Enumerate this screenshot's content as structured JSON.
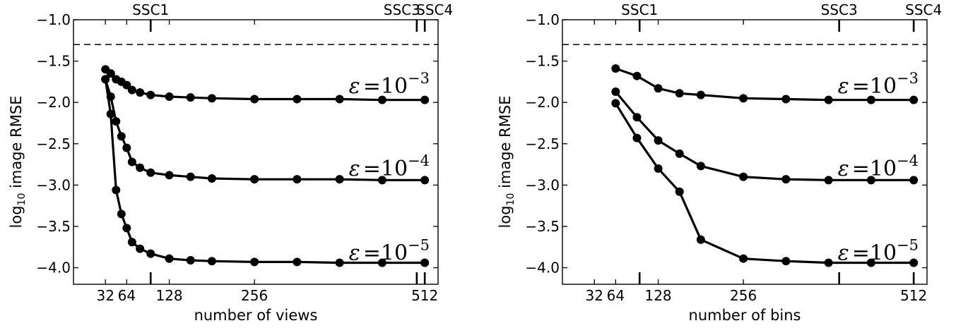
{
  "chart_data": [
    {
      "type": "line",
      "xlabel": "number of views",
      "ylabel_main": "log",
      "ylabel_sub": "10",
      "ylabel_rest": " image RMSE",
      "xlim": [
        -16,
        532
      ],
      "ylim": [
        -4.2,
        -1.0
      ],
      "x_ticks": [
        32,
        64,
        128,
        256,
        512
      ],
      "x_tick_labels": [
        "32",
        "64",
        "128",
        "256",
        "512"
      ],
      "y_ticks": [
        -1.0,
        -1.5,
        -2.0,
        -2.5,
        -3.0,
        -3.5,
        -4.0
      ],
      "y_tick_labels": [
        "−1.0",
        "−1.5",
        "−2.0",
        "−2.5",
        "−3.0",
        "−3.5",
        "−4.0"
      ],
      "reference_line": -1.3,
      "markers": [
        {
          "label": "SSC1",
          "x": 100
        },
        {
          "label": "SSC3",
          "x": 500
        },
        {
          "label": "SSC4",
          "x": 512
        }
      ],
      "series": [
        {
          "name": "ε = 10⁻³",
          "eps_exp": "−3",
          "label_y": -1.8,
          "x": [
            32,
            40,
            48,
            56,
            64,
            72,
            84,
            100,
            128,
            160,
            192,
            256,
            320,
            384,
            448,
            512
          ],
          "y": [
            -1.6,
            -1.65,
            -1.72,
            -1.75,
            -1.79,
            -1.85,
            -1.88,
            -1.91,
            -1.93,
            -1.94,
            -1.95,
            -1.96,
            -1.96,
            -1.96,
            -1.97,
            -1.97
          ]
        },
        {
          "name": "ε = 10⁻⁴",
          "eps_exp": "−4",
          "label_y": -2.8,
          "x": [
            32,
            40,
            48,
            56,
            64,
            72,
            84,
            100,
            128,
            160,
            192,
            256,
            320,
            384,
            448,
            512
          ],
          "y": [
            -1.72,
            -1.93,
            -2.23,
            -2.41,
            -2.55,
            -2.72,
            -2.79,
            -2.85,
            -2.88,
            -2.9,
            -2.92,
            -2.93,
            -2.93,
            -2.93,
            -2.94,
            -2.94
          ]
        },
        {
          "name": "ε = 10⁻⁵",
          "eps_exp": "−5",
          "label_y": -3.82,
          "x": [
            32,
            40,
            48,
            56,
            64,
            72,
            84,
            100,
            128,
            160,
            192,
            256,
            320,
            384,
            448,
            512
          ],
          "y": [
            -1.72,
            -2.14,
            -3.06,
            -3.35,
            -3.52,
            -3.69,
            -3.77,
            -3.83,
            -3.89,
            -3.91,
            -3.92,
            -3.93,
            -3.93,
            -3.94,
            -3.94,
            -3.94
          ]
        }
      ]
    },
    {
      "type": "line",
      "xlabel": "number of bins",
      "ylabel_main": "log",
      "ylabel_sub": "10",
      "ylabel_rest": " image RMSE",
      "xlim": [
        -16,
        532
      ],
      "ylim": [
        -4.2,
        -1.0
      ],
      "x_ticks": [
        32,
        64,
        128,
        256,
        512
      ],
      "x_tick_labels": [
        "32",
        "64",
        "128",
        "256",
        "512"
      ],
      "y_ticks": [
        -1.0,
        -1.5,
        -2.0,
        -2.5,
        -3.0,
        -3.5,
        -4.0
      ],
      "y_tick_labels": [
        "−1.0",
        "−1.5",
        "−2.0",
        "−2.5",
        "−3.0",
        "−3.5",
        "−4.0"
      ],
      "reference_line": -1.3,
      "markers": [
        {
          "label": "SSC1",
          "x": 100
        },
        {
          "label": "SSC3",
          "x": 400
        },
        {
          "label": "SSC4",
          "x": 512
        }
      ],
      "series": [
        {
          "name": "ε = 10⁻³",
          "eps_exp": "−3",
          "label_y": -1.8,
          "x": [
            64,
            96,
            128,
            160,
            192,
            256,
            320,
            384,
            448,
            512
          ],
          "y": [
            -1.59,
            -1.68,
            -1.83,
            -1.89,
            -1.91,
            -1.95,
            -1.96,
            -1.97,
            -1.97,
            -1.97
          ]
        },
        {
          "name": "ε = 10⁻⁴",
          "eps_exp": "−4",
          "label_y": -2.8,
          "x": [
            64,
            96,
            128,
            160,
            192,
            256,
            320,
            384,
            448,
            512
          ],
          "y": [
            -1.87,
            -2.18,
            -2.46,
            -2.62,
            -2.77,
            -2.9,
            -2.93,
            -2.94,
            -2.94,
            -2.94
          ]
        },
        {
          "name": "ε = 10⁻⁵",
          "eps_exp": "−5",
          "label_y": -3.82,
          "x": [
            64,
            96,
            128,
            160,
            192,
            256,
            320,
            384,
            448,
            512
          ],
          "y": [
            -2.01,
            -2.43,
            -2.8,
            -3.08,
            -3.66,
            -3.89,
            -3.92,
            -3.94,
            -3.94,
            -3.94
          ]
        }
      ]
    }
  ]
}
